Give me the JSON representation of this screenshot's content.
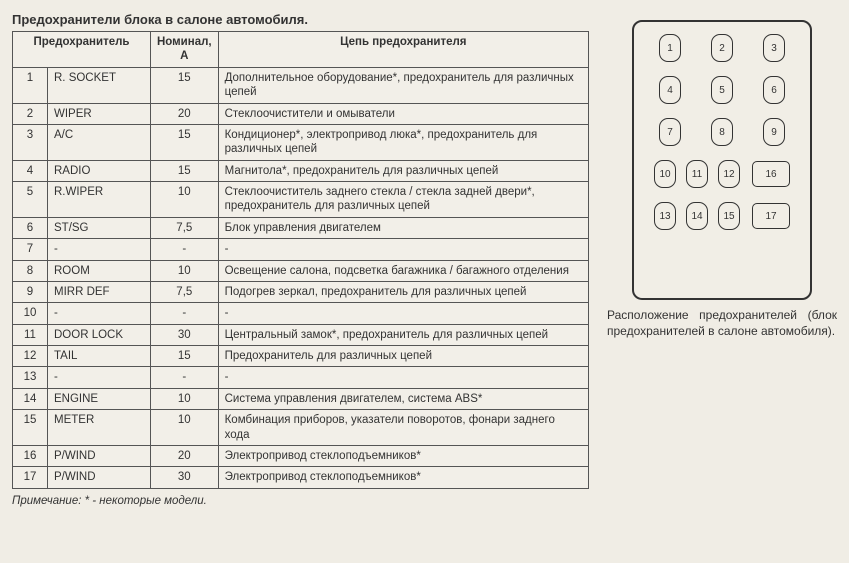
{
  "title": "Предохранители блока в салоне автомобиля.",
  "headers": {
    "col1": "Предохранитель",
    "col2": "Номинал, А",
    "col3": "Цепь предохранителя"
  },
  "rows": [
    {
      "n": "1",
      "name": "R. SOCKET",
      "rating": "15",
      "desc": "Дополнительное оборудование*, предохранитель для различных цепей"
    },
    {
      "n": "2",
      "name": "WIPER",
      "rating": "20",
      "desc": "Стеклоочистители и омыватели"
    },
    {
      "n": "3",
      "name": "A/C",
      "rating": "15",
      "desc": "Кондиционер*, электропривод люка*, предохранитель для различных цепей"
    },
    {
      "n": "4",
      "name": "RADIO",
      "rating": "15",
      "desc": "Магнитола*, предохранитель для различных цепей"
    },
    {
      "n": "5",
      "name": "R.WIPER",
      "rating": "10",
      "desc": "Стеклоочиститель заднего стекла / стекла задней двери*, предохранитель для различных цепей"
    },
    {
      "n": "6",
      "name": "ST/SG",
      "rating": "7,5",
      "desc": "Блок управления двигателем"
    },
    {
      "n": "7",
      "name": "-",
      "rating": "-",
      "desc": "-"
    },
    {
      "n": "8",
      "name": "ROOM",
      "rating": "10",
      "desc": "Освещение салона, подсветка багажника / багажного отделения"
    },
    {
      "n": "9",
      "name": "MIRR DEF",
      "rating": "7,5",
      "desc": "Подогрев зеркал, предохранитель для различных цепей"
    },
    {
      "n": "10",
      "name": "-",
      "rating": "-",
      "desc": "-"
    },
    {
      "n": "11",
      "name": "DOOR LOCK",
      "rating": "30",
      "desc": "Центральный замок*, предохранитель для различных цепей"
    },
    {
      "n": "12",
      "name": "TAIL",
      "rating": "15",
      "desc": "Предохранитель для различных цепей"
    },
    {
      "n": "13",
      "name": "-",
      "rating": "-",
      "desc": "-"
    },
    {
      "n": "14",
      "name": "ENGINE",
      "rating": "10",
      "desc": "Система управления двигателем, система ABS*"
    },
    {
      "n": "15",
      "name": "METER",
      "rating": "10",
      "desc": "Комбинация приборов, указатели поворотов, фонари заднего хода"
    },
    {
      "n": "16",
      "name": "P/WIND",
      "rating": "20",
      "desc": "Электропривод стеклоподъемников*"
    },
    {
      "n": "17",
      "name": "P/WIND",
      "rating": "30",
      "desc": "Электропривод стеклоподъемников*"
    }
  ],
  "footnote": "Примечание: * - некоторые модели.",
  "diagram": {
    "row1": [
      "1",
      "2",
      "3"
    ],
    "row2": [
      "4",
      "5",
      "6"
    ],
    "row3": [
      "7",
      "8",
      "9"
    ],
    "row4_left": [
      "10",
      "11",
      "12"
    ],
    "row4_right": "16",
    "row5_left": [
      "13",
      "14",
      "15"
    ],
    "row5_right": "17"
  },
  "caption": "Расположение предохранителей (блок предохранителей в салоне автомобиля)."
}
